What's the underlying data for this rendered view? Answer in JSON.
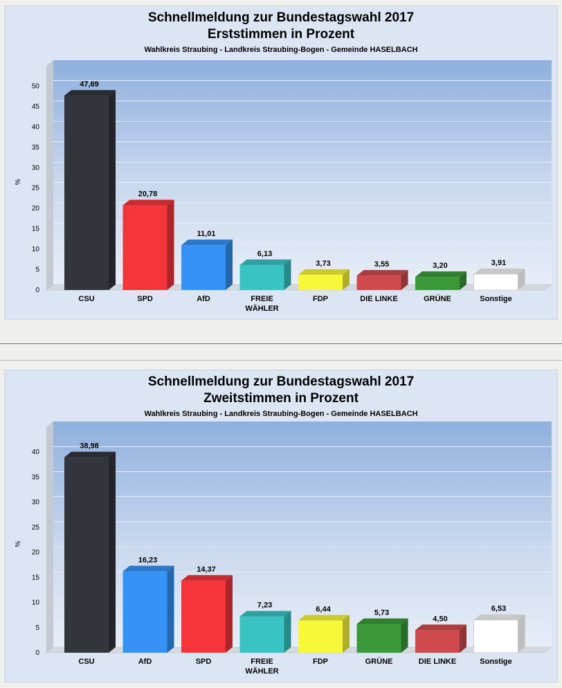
{
  "chart_data": [
    {
      "type": "bar",
      "title": "Schnellmeldung zur Bundestagswahl 2017",
      "subtitle": "Erststimmen in Prozent",
      "subtitle2": "Wahlkreis Straubing - Landkreis Straubing-Bogen - Gemeinde HASELBACH",
      "xlabel": "",
      "ylabel": "%",
      "ylim": [
        0,
        55
      ],
      "yticks": [
        0,
        5,
        10,
        15,
        20,
        25,
        30,
        35,
        40,
        45,
        50
      ],
      "grid": true,
      "categories": [
        "CSU",
        "SPD",
        "AfD",
        "FREIE WÄHLER",
        "FDP",
        "DIE LINKE",
        "GRÜNE",
        "Sonstige"
      ],
      "category_lines": [
        [
          "CSU"
        ],
        [
          "SPD"
        ],
        [
          "AfD"
        ],
        [
          "FREIE",
          "WÄHLER"
        ],
        [
          "FDP"
        ],
        [
          "DIE LINKE"
        ],
        [
          "GRÜNE"
        ],
        [
          "Sonstige"
        ]
      ],
      "values": [
        47.69,
        20.78,
        11.01,
        6.13,
        3.73,
        3.55,
        3.2,
        3.91
      ],
      "value_labels": [
        "47,69",
        "20,78",
        "11,01",
        "6,13",
        "3,73",
        "3,55",
        "3,20",
        "3,91"
      ],
      "colors": [
        "#33353d",
        "#f4353a",
        "#3593f6",
        "#39c3c3",
        "#f8f83a",
        "#cf4a4d",
        "#3a9a3a",
        "#ffffff"
      ]
    },
    {
      "type": "bar",
      "title": "Schnellmeldung zur Bundestagswahl 2017",
      "subtitle": "Zweitstimmen in Prozent",
      "subtitle2": "Wahlkreis Straubing - Landkreis Straubing-Bogen - Gemeinde HASELBACH",
      "xlabel": "",
      "ylabel": "%",
      "ylim": [
        0,
        45
      ],
      "yticks": [
        0,
        5,
        10,
        15,
        20,
        25,
        30,
        35,
        40
      ],
      "grid": true,
      "categories": [
        "CSU",
        "AfD",
        "SPD",
        "FREIE WÄHLER",
        "FDP",
        "GRÜNE",
        "DIE LINKE",
        "Sonstige"
      ],
      "category_lines": [
        [
          "CSU"
        ],
        [
          "AfD"
        ],
        [
          "SPD"
        ],
        [
          "FREIE",
          "WÄHLER"
        ],
        [
          "FDP"
        ],
        [
          "GRÜNE"
        ],
        [
          "DIE LINKE"
        ],
        [
          "Sonstige"
        ]
      ],
      "values": [
        38.98,
        16.23,
        14.37,
        7.23,
        6.44,
        5.73,
        4.5,
        6.53
      ],
      "value_labels": [
        "38,98",
        "16,23",
        "14,37",
        "7,23",
        "6,44",
        "5,73",
        "4,50",
        "6,53"
      ],
      "colors": [
        "#33353d",
        "#3593f6",
        "#f4353a",
        "#39c3c3",
        "#f8f83a",
        "#3a9a3a",
        "#cf4a4d",
        "#ffffff"
      ]
    }
  ]
}
